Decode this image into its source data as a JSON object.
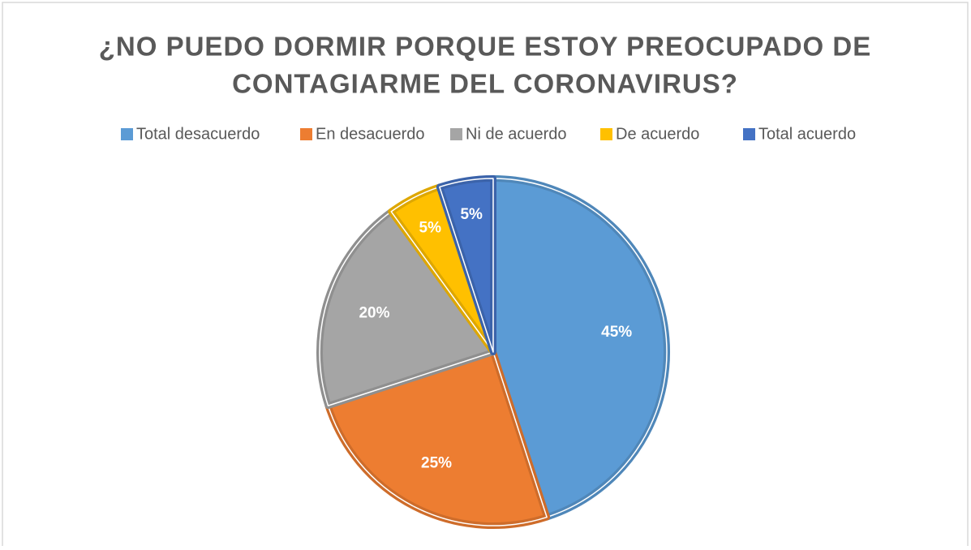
{
  "chart_data": {
    "type": "pie",
    "title": [
      "¿NO PUEDO DORMIR PORQUE ESTOY PREOCUPADO DE",
      "CONTAGIARME DEL CORONAVIRUS?"
    ],
    "categories": [
      "Total desacuerdo",
      "En desacuerdo",
      "Ni de acuerdo",
      "De acuerdo",
      "Total acuerdo"
    ],
    "values": [
      45,
      25,
      20,
      5,
      5
    ],
    "value_labels": [
      "45%",
      "25%",
      "20%",
      "5%",
      "5%"
    ],
    "colors": [
      "#5B9BD5",
      "#ED7D31",
      "#A5A5A5",
      "#FFC000",
      "#4472C4"
    ],
    "legend": "top"
  }
}
